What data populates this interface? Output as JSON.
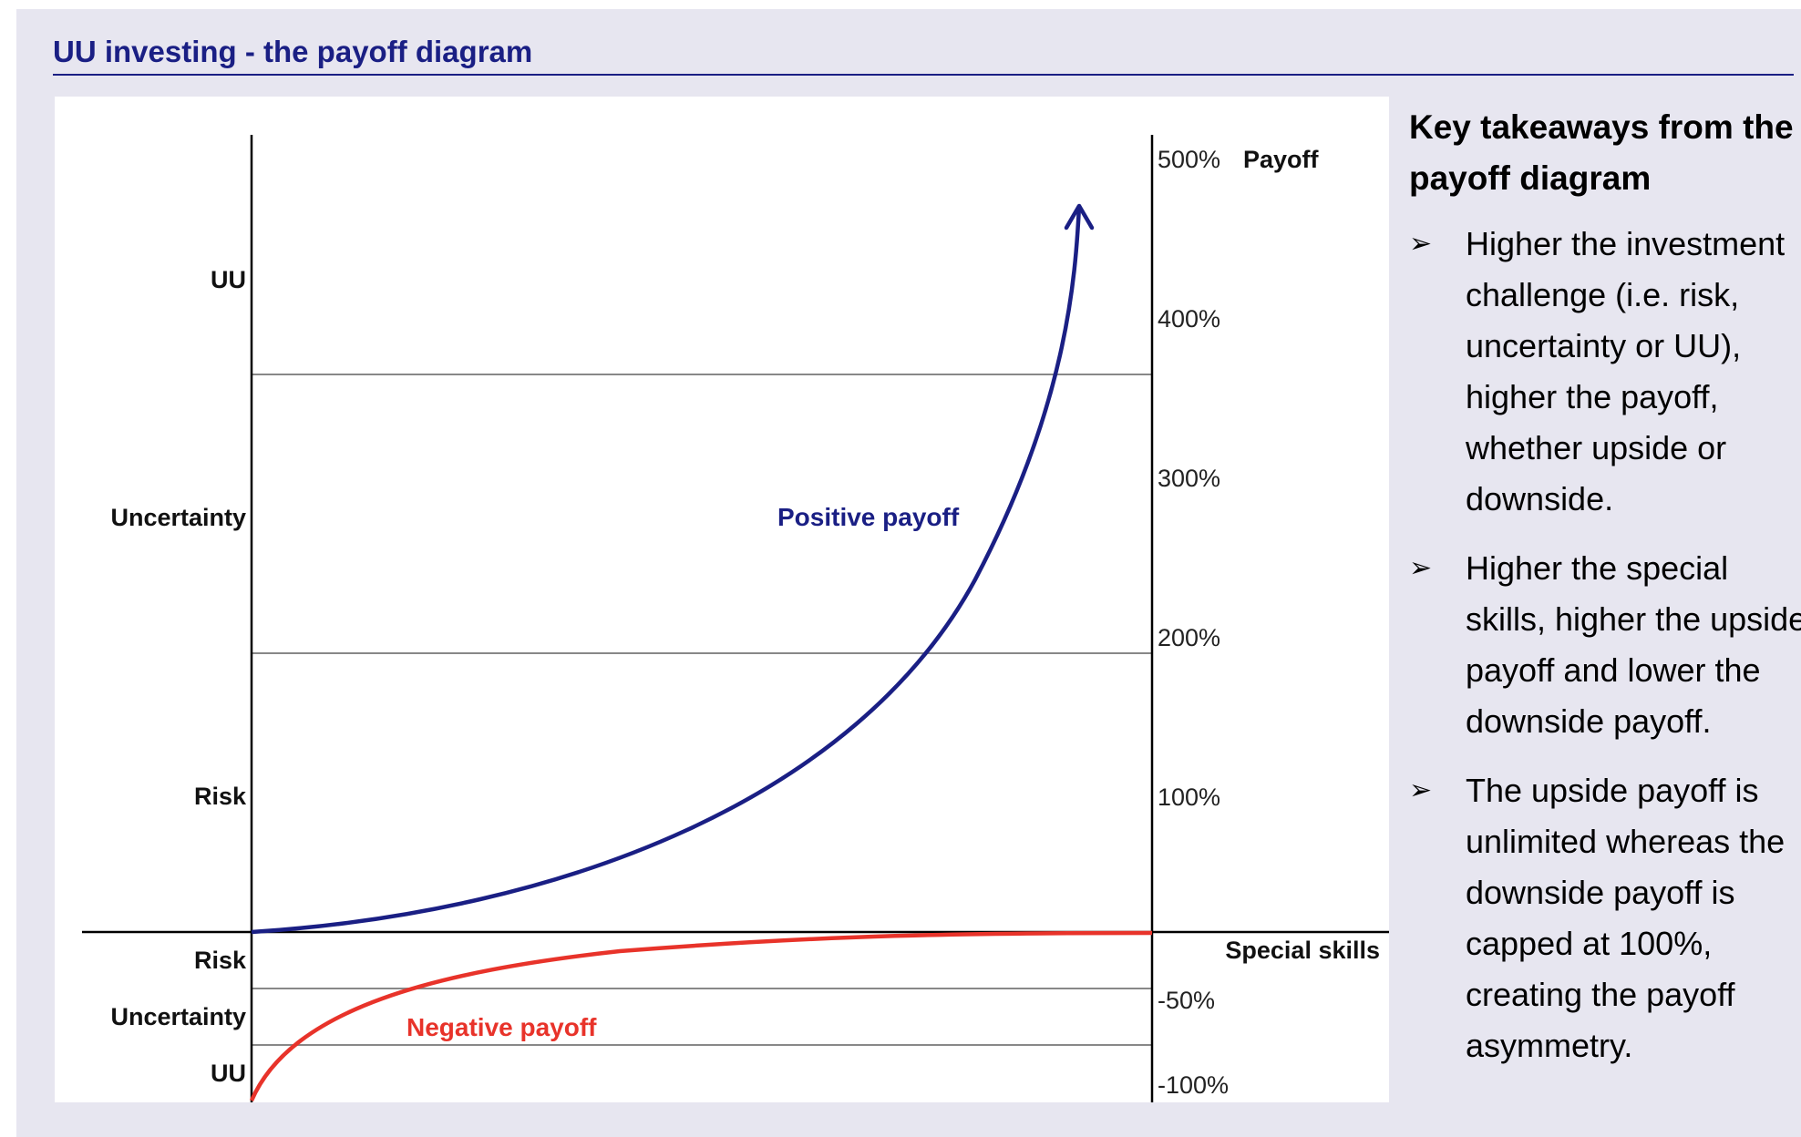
{
  "title": "UU investing - the payoff diagram",
  "diagram": {
    "left_levels": [
      "UU",
      "Uncertainty",
      "Risk",
      "Risk",
      "Uncertainty",
      "UU"
    ],
    "right_ticks": [
      "500%",
      "400%",
      "300%",
      "200%",
      "100%",
      "-50%",
      "-100%"
    ],
    "y_axis_label": "Payoff",
    "x_axis_label": "Special skills",
    "positive_label": "Positive payoff",
    "negative_label": "Negative payoff",
    "colors": {
      "positive": "#1a1f84",
      "negative": "#e8332a",
      "axis": "#000000",
      "grid": "#888888"
    }
  },
  "takeaways": {
    "heading": "Key takeaways from the payoff diagram",
    "bullet_icon": "arrowhead-bullet-icon",
    "items": [
      "Higher the investment challenge (i.e. risk, uncertainty or UU), higher the payoff, whether upside or downside.",
      "Higher the special skills, higher the upside payoff and lower the downside payoff.",
      "The upside payoff is unlimited whereas the downside payoff is capped at 100%, creating the payoff asymmetry."
    ]
  }
}
